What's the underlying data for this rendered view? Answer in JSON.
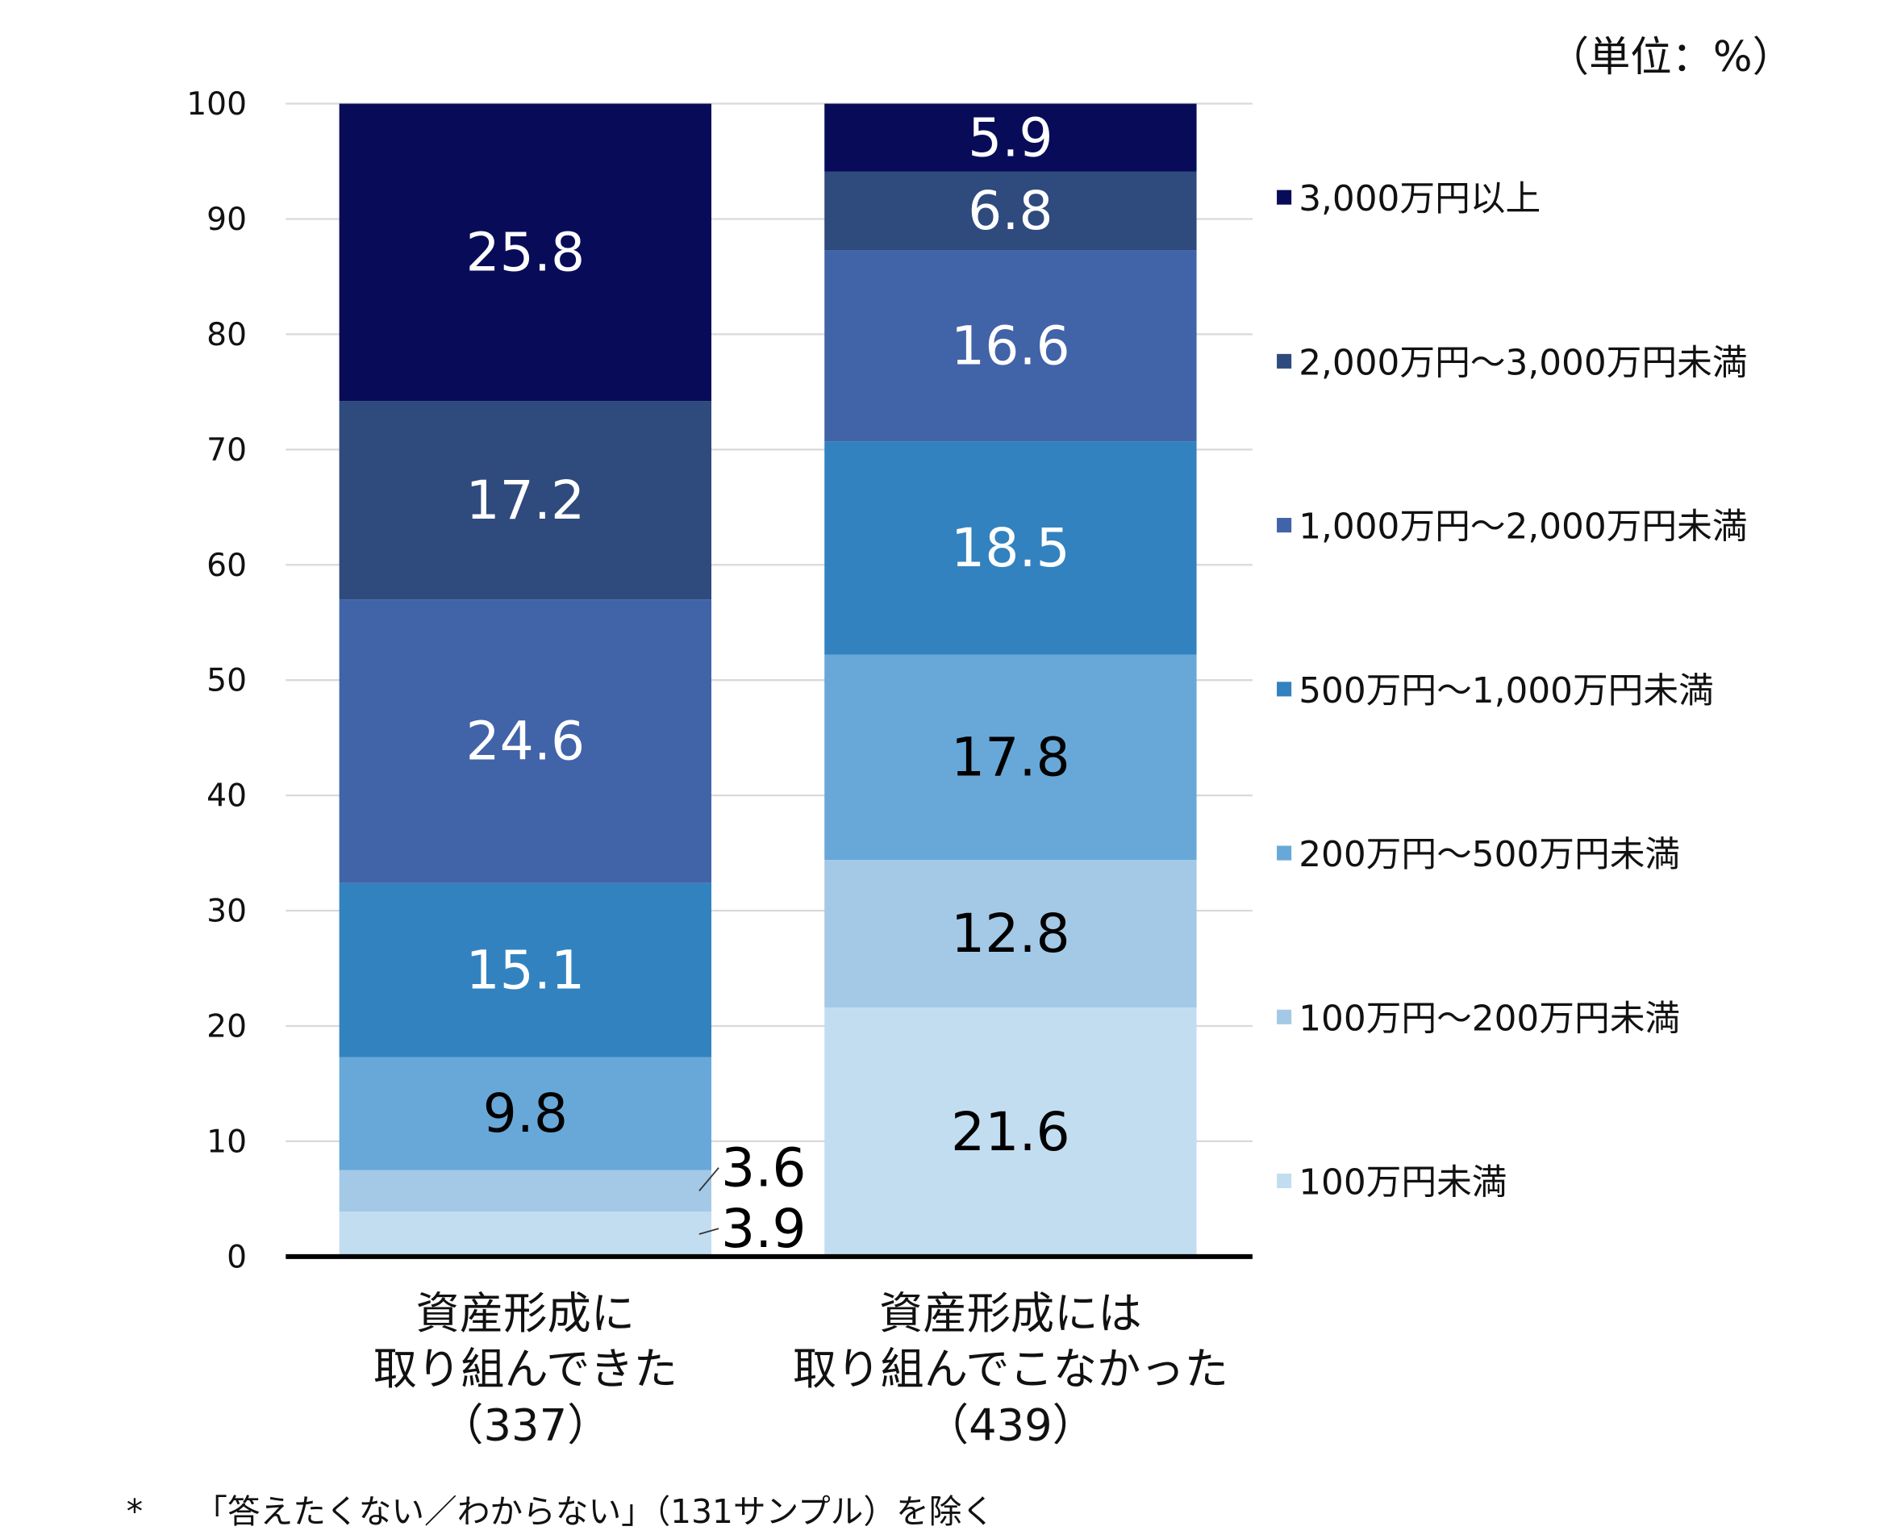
{
  "chart_data": {
    "type": "bar",
    "stacked": true,
    "title": "",
    "unit_label": "（単位：%）",
    "ylim": [
      0,
      100
    ],
    "yticks": [
      0,
      10,
      20,
      30,
      40,
      50,
      60,
      70,
      80,
      90,
      100
    ],
    "grid": true,
    "legend_placement": "right",
    "categories": [
      [
        "資産形成に",
        "取り組んできた",
        "（337）"
      ],
      [
        "資産形成には",
        "取り組んでこなかった",
        "（439）"
      ]
    ],
    "series": [
      {
        "name": "100万円未満",
        "color": "#C3DDF0",
        "label_color": "#000000",
        "values": [
          3.9,
          21.6
        ]
      },
      {
        "name": "100万円～200万円未満",
        "color": "#A3C9E7",
        "label_color": "#000000",
        "values": [
          3.6,
          12.8
        ]
      },
      {
        "name": "200万円～500万円未満",
        "color": "#67A8D8",
        "label_color": "#000000",
        "values": [
          9.8,
          17.8
        ]
      },
      {
        "name": "500万円～1,000万円未満",
        "color": "#3282C0",
        "label_color": "#FFFFFF",
        "values": [
          15.1,
          18.5
        ]
      },
      {
        "name": "1,000万円～2,000万円未満",
        "color": "#4163A8",
        "label_color": "#FFFFFF",
        "values": [
          24.6,
          16.6
        ]
      },
      {
        "name": "2,000万円～3,000万円未満",
        "color": "#2F4A7D",
        "label_color": "#FFFFFF",
        "values": [
          17.2,
          6.8
        ]
      },
      {
        "name": "3,000万円以上",
        "color": "#080C58",
        "label_color": "#FFFFFF",
        "values": [
          25.8,
          5.9
        ]
      }
    ],
    "footnote_mark": "*",
    "footnote": "「答えたくない／わからない」（131サンプル）を除く"
  }
}
